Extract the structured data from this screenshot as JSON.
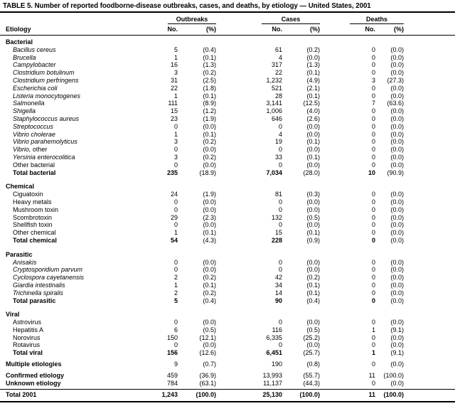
{
  "title": "TABLE 5. Number of reported foodborne-disease outbreaks, cases, and deaths, by etiology — United States, 2001",
  "header": {
    "etiology": "Etiology",
    "groups": [
      {
        "label": "Outbreaks"
      },
      {
        "label": "Cases"
      },
      {
        "label": "Deaths"
      }
    ],
    "subcols": {
      "no": "No.",
      "pct": "(%)"
    }
  },
  "sections": [
    {
      "name": "Bacterial",
      "rows": [
        {
          "label": "Bacillus cereus",
          "italic": true,
          "vals": [
            "5",
            "(0.4)",
            "61",
            "(0.2)",
            "0",
            "(0.0)"
          ]
        },
        {
          "label": "Brucella",
          "italic": true,
          "vals": [
            "1",
            "(0.1)",
            "4",
            "(0.0)",
            "0",
            "(0.0)"
          ]
        },
        {
          "label": "Campylobacter",
          "italic": true,
          "vals": [
            "16",
            "(1.3)",
            "317",
            "(1.3)",
            "0",
            "(0.0)"
          ]
        },
        {
          "label": "Clostridium botulinum",
          "italic": true,
          "vals": [
            "3",
            "(0.2)",
            "22",
            "(0.1)",
            "0",
            "(0.0)"
          ]
        },
        {
          "label": "Clostridium perfringens",
          "italic": true,
          "vals": [
            "31",
            "(2.5)",
            "1,232",
            "(4.9)",
            "3",
            "(27.3)"
          ]
        },
        {
          "label": "Escherichia coli",
          "italic": true,
          "vals": [
            "22",
            "(1.8)",
            "521",
            "(2.1)",
            "0",
            "(0.0)"
          ]
        },
        {
          "label": "Listeria monocytogenes",
          "italic": true,
          "vals": [
            "1",
            "(0.1)",
            "28",
            "(0.1)",
            "0",
            "(0.0)"
          ]
        },
        {
          "label": "Salmonella",
          "italic": true,
          "vals": [
            "111",
            "(8.9)",
            "3,141",
            "(12.5)",
            "7",
            "(63.6)"
          ]
        },
        {
          "label": "Shigella",
          "italic": true,
          "vals": [
            "15",
            "(1.2)",
            "1,006",
            "(4.0)",
            "0",
            "(0.0)"
          ]
        },
        {
          "label": "Staphylococcus aureus",
          "italic": true,
          "vals": [
            "23",
            "(1.9)",
            "646",
            "(2.6)",
            "0",
            "(0.0)"
          ]
        },
        {
          "label": "Streptococcus",
          "italic": true,
          "vals": [
            "0",
            "(0.0)",
            "0",
            "(0.0)",
            "0",
            "(0.0)"
          ]
        },
        {
          "label": "Vibrio cholerae",
          "italic": true,
          "vals": [
            "1",
            "(0.1)",
            "4",
            "(0.0)",
            "0",
            "(0.0)"
          ]
        },
        {
          "label": "Vibrio parahemolyticus",
          "italic": true,
          "vals": [
            "3",
            "(0.2)",
            "19",
            "(0.1)",
            "0",
            "(0.0)"
          ]
        },
        {
          "label_parts": [
            {
              "text": "Vibrio,",
              "italic": true
            },
            {
              "text": " other",
              "italic": false
            }
          ],
          "vals": [
            "0",
            "(0.0)",
            "0",
            "(0.0)",
            "0",
            "(0.0)"
          ]
        },
        {
          "label": "Yersinia enterocolitica",
          "italic": true,
          "vals": [
            "3",
            "(0.2)",
            "33",
            "(0.1)",
            "0",
            "(0.0)"
          ]
        },
        {
          "label": "Other bacterial",
          "vals": [
            "0",
            "(0.0)",
            "0",
            "(0.0)",
            "0",
            "(0.0)"
          ]
        },
        {
          "label": "Total bacterial",
          "total": true,
          "vals": [
            "235",
            "(18.9)",
            "7,034",
            "(28.0)",
            "10",
            "(90.9)"
          ]
        }
      ]
    },
    {
      "name": "Chemical",
      "rows": [
        {
          "label": "Ciguatoxin",
          "vals": [
            "24",
            "(1.9)",
            "81",
            "(0.3)",
            "0",
            "(0.0)"
          ]
        },
        {
          "label": "Heavy metals",
          "vals": [
            "0",
            "(0.0)",
            "0",
            "(0.0)",
            "0",
            "(0.0)"
          ]
        },
        {
          "label": "Mushroom toxin",
          "vals": [
            "0",
            "(0.0)",
            "0",
            "(0.0)",
            "0",
            "(0.0)"
          ]
        },
        {
          "label": "Scombrotoxin",
          "vals": [
            "29",
            "(2.3)",
            "132",
            "(0.5)",
            "0",
            "(0.0)"
          ]
        },
        {
          "label": "Shellfish toxin",
          "vals": [
            "0",
            "(0.0)",
            "0",
            "(0.0)",
            "0",
            "(0.0)"
          ]
        },
        {
          "label": "Other chemical",
          "vals": [
            "1",
            "(0.1)",
            "15",
            "(0.1)",
            "0",
            "(0.0)"
          ]
        },
        {
          "label": "Total chemical",
          "total": true,
          "vals": [
            "54",
            "(4.3)",
            "228",
            "(0.9)",
            "0",
            "(0.0)"
          ]
        }
      ]
    },
    {
      "name": "Parasitic",
      "rows": [
        {
          "label": "Anisakis",
          "italic": true,
          "vals": [
            "0",
            "(0.0)",
            "0",
            "(0.0)",
            "0",
            "(0.0)"
          ]
        },
        {
          "label": "Cryptosporidium parvum",
          "italic": true,
          "vals": [
            "0",
            "(0.0)",
            "0",
            "(0.0)",
            "0",
            "(0.0)"
          ]
        },
        {
          "label": "Cyclospora cayetanensis",
          "italic": true,
          "vals": [
            "2",
            "(0.2)",
            "42",
            "(0.2)",
            "0",
            "(0.0)"
          ]
        },
        {
          "label": "Giardia intestinalis",
          "italic": true,
          "vals": [
            "1",
            "(0.1)",
            "34",
            "(0.1)",
            "0",
            "(0.0)"
          ]
        },
        {
          "label": "Trichinella spiralis",
          "italic": true,
          "vals": [
            "2",
            "(0.2)",
            "14",
            "(0.1)",
            "0",
            "(0.0)"
          ]
        },
        {
          "label": "Total parasitic",
          "total": true,
          "vals": [
            "5",
            "(0.4)",
            "90",
            "(0.4)",
            "0",
            "(0.0)"
          ]
        }
      ]
    },
    {
      "name": "Viral",
      "rows": [
        {
          "label": "Astrovirus",
          "vals": [
            "0",
            "(0.0)",
            "0",
            "(0.0)",
            "0",
            "(0.0)"
          ]
        },
        {
          "label": "Hepatitis A",
          "vals": [
            "6",
            "(0.5)",
            "116",
            "(0.5)",
            "1",
            "(9.1)"
          ]
        },
        {
          "label": "Norovirus",
          "vals": [
            "150",
            "(12.1)",
            "6,335",
            "(25.2)",
            "0",
            "(0.0)"
          ]
        },
        {
          "label": "Rotavirus",
          "vals": [
            "0",
            "(0.0)",
            "0",
            "(0.0)",
            "0",
            "(0.0)"
          ]
        },
        {
          "label": "Total viral",
          "total": true,
          "vals": [
            "156",
            "(12.6)",
            "6,451",
            "(25.7)",
            "1",
            "(9.1)"
          ]
        }
      ]
    }
  ],
  "summary_rows": [
    {
      "label": "Multiple etiologies",
      "bold_label": true,
      "gap_before": true,
      "vals": [
        "9",
        "(0.7)",
        "190",
        "(0.8)",
        "0",
        "(0.0)"
      ]
    },
    {
      "label": "Confirmed etiology",
      "bold_label": true,
      "gap_before": true,
      "vals": [
        "459",
        "(36.9)",
        "13,993",
        "(55.7)",
        "11",
        "(100.0)"
      ]
    },
    {
      "label": "Unknown etiology",
      "bold_label": true,
      "vals": [
        "784",
        "(63.1)",
        "11,137",
        "(44.3)",
        "0",
        "(0.0)"
      ]
    }
  ],
  "grand_total": {
    "label": "Total 2001",
    "vals": [
      "1,243",
      "(100.0)",
      "25,130",
      "(100.0)",
      "11",
      "(100.0)"
    ]
  }
}
